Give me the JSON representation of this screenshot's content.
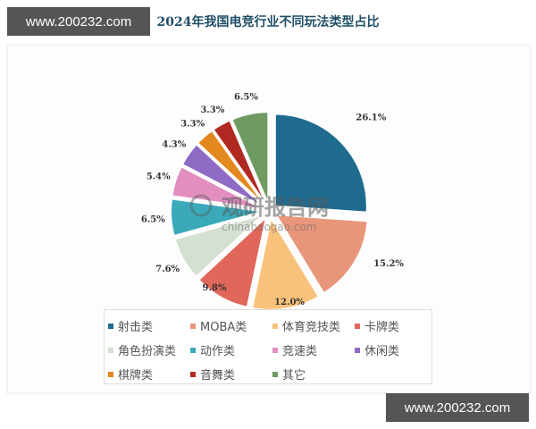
{
  "watermarks": {
    "top": "www.200232.com",
    "bottom": "www.200232.com"
  },
  "chart_watermark": {
    "logo": "观研报告网",
    "url": "chinabaogao.com"
  },
  "chart_data": {
    "type": "pie",
    "title": "2024年我国电竞行业不同玩法类型占比",
    "exploded": true,
    "start_angle": "12 o'clock, clockwise",
    "legend_position": "bottom",
    "categories": [
      "射击类",
      "MOBA类",
      "体育竞技类",
      "卡牌类",
      "角色扮演类",
      "动作类",
      "竞速类",
      "休闲类",
      "棋牌类",
      "音舞类",
      "其它"
    ],
    "values": [
      26.1,
      15.2,
      12.0,
      9.8,
      7.6,
      6.5,
      5.4,
      4.3,
      3.3,
      3.3,
      6.5
    ],
    "labels": [
      "26.1%",
      "15.2%",
      "12.0%",
      "9.8%",
      "7.6%",
      "6.5%",
      "5.4%",
      "4.3%",
      "3.3%",
      "3.3%",
      "6.5%"
    ],
    "colors": [
      "#1f6b8f",
      "#e8967a",
      "#f9c27a",
      "#e0675a",
      "#d4e0d2",
      "#3aaabb",
      "#e28fc0",
      "#8e6bc4",
      "#e2881f",
      "#b02a22",
      "#6f9b63"
    ],
    "unit": "%"
  }
}
